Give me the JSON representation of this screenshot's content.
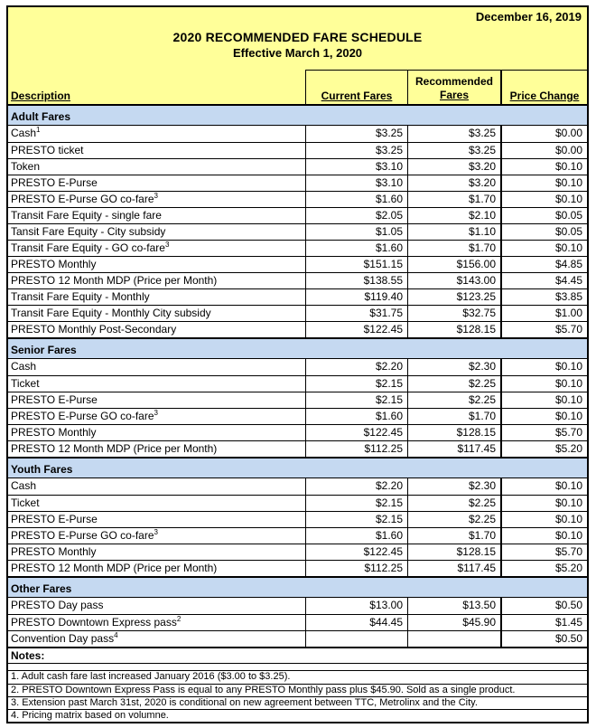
{
  "document": {
    "date": "December 16, 2019",
    "title": "2020 RECOMMENDED FARE SCHEDULE",
    "subtitle": "Effective March 1, 2020"
  },
  "columns": {
    "description": "Description",
    "current": "Current Fares",
    "recommended_line1": "Recommended",
    "recommended_line2": "Fares",
    "price_change": "Price Change"
  },
  "sections": [
    {
      "header": "Adult Fares",
      "rows": [
        {
          "label": "Cash",
          "sup": "1",
          "current": "$3.25",
          "recommended": "$3.25",
          "change": "$0.00"
        },
        {
          "label": "PRESTO ticket",
          "sup": "",
          "current": "$3.25",
          "recommended": "$3.25",
          "change": "$0.00"
        },
        {
          "label": "Token",
          "sup": "",
          "current": "$3.10",
          "recommended": "$3.20",
          "change": "$0.10"
        },
        {
          "label": "PRESTO E-Purse",
          "sup": "",
          "current": "$3.10",
          "recommended": "$3.20",
          "change": "$0.10"
        },
        {
          "label": "PRESTO E-Purse GO co-fare",
          "sup": "3",
          "current": "$1.60",
          "recommended": "$1.70",
          "change": "$0.10"
        },
        {
          "label": "Transit Fare Equity - single fare",
          "sup": "",
          "current": "$2.05",
          "recommended": "$2.10",
          "change": "$0.05"
        },
        {
          "label": "Tansit Fare Equity - City subsidy",
          "sup": "",
          "current": "$1.05",
          "recommended": "$1.10",
          "change": "$0.05"
        },
        {
          "label": "Transit Fare Equity - GO co-fare",
          "sup": "3",
          "current": "$1.60",
          "recommended": "$1.70",
          "change": "$0.10"
        },
        {
          "label": "PRESTO Monthly",
          "sup": "",
          "current": "$151.15",
          "recommended": "$156.00",
          "change": "$4.85"
        },
        {
          "label": "PRESTO 12 Month MDP (Price per Month)",
          "sup": "",
          "current": "$138.55",
          "recommended": "$143.00",
          "change": "$4.45"
        },
        {
          "label": "Transit Fare Equity - Monthly",
          "sup": "",
          "current": "$119.40",
          "recommended": "$123.25",
          "change": "$3.85"
        },
        {
          "label": "Transit Fare Equity - Monthly City subsidy",
          "sup": "",
          "current": "$31.75",
          "recommended": "$32.75",
          "change": "$1.00"
        },
        {
          "label": "PRESTO Monthly Post-Secondary",
          "sup": "",
          "current": "$122.45",
          "recommended": "$128.15",
          "change": "$5.70"
        }
      ]
    },
    {
      "header": "Senior Fares",
      "rows": [
        {
          "label": "Cash",
          "sup": "",
          "current": "$2.20",
          "recommended": "$2.30",
          "change": "$0.10"
        },
        {
          "label": "Ticket",
          "sup": "",
          "current": "$2.15",
          "recommended": "$2.25",
          "change": "$0.10"
        },
        {
          "label": "PRESTO E-Purse",
          "sup": "",
          "current": "$2.15",
          "recommended": "$2.25",
          "change": "$0.10"
        },
        {
          "label": "PRESTO E-Purse GO co-fare",
          "sup": "3",
          "current": "$1.60",
          "recommended": "$1.70",
          "change": "$0.10"
        },
        {
          "label": "PRESTO Monthly",
          "sup": "",
          "current": "$122.45",
          "recommended": "$128.15",
          "change": "$5.70"
        },
        {
          "label": "PRESTO 12 Month MDP (Price per Month)",
          "sup": "",
          "current": "$112.25",
          "recommended": "$117.45",
          "change": "$5.20"
        }
      ]
    },
    {
      "header": "Youth Fares",
      "rows": [
        {
          "label": "Cash",
          "sup": "",
          "current": "$2.20",
          "recommended": "$2.30",
          "change": "$0.10"
        },
        {
          "label": "Ticket",
          "sup": "",
          "current": "$2.15",
          "recommended": "$2.25",
          "change": "$0.10"
        },
        {
          "label": "PRESTO E-Purse",
          "sup": "",
          "current": "$2.15",
          "recommended": "$2.25",
          "change": "$0.10"
        },
        {
          "label": "PRESTO E-Purse GO co-fare",
          "sup": "3",
          "current": "$1.60",
          "recommended": "$1.70",
          "change": "$0.10"
        },
        {
          "label": "PRESTO Monthly",
          "sup": "",
          "current": "$122.45",
          "recommended": "$128.15",
          "change": "$5.70"
        },
        {
          "label": "PRESTO 12 Month MDP (Price per Month)",
          "sup": "",
          "current": "$112.25",
          "recommended": "$117.45",
          "change": "$5.20"
        }
      ]
    },
    {
      "header": "Other Fares",
      "rows": [
        {
          "label": "PRESTO Day pass",
          "sup": "",
          "current": "$13.00",
          "recommended": "$13.50",
          "change": "$0.50"
        },
        {
          "label": "PRESTO Downtown Express pass",
          "sup": "2",
          "current": "$44.45",
          "recommended": "$45.90",
          "change": "$1.45"
        },
        {
          "label": "Convention Day pass",
          "sup": "4",
          "current": "",
          "recommended": "",
          "change": "$0.50"
        }
      ]
    }
  ],
  "notes": {
    "header": "Notes:",
    "items": [
      "1. Adult cash fare last increased January 2016 ($3.00 to $3.25).",
      "2. PRESTO Downtown Express Pass is equal to any PRESTO Monthly pass plus $45.90. Sold as a single product.",
      "3. Extension past March 31st, 2020 is conditional on new agreement between TTC, Metrolinx and the City.",
      "4. Pricing matrix based on volumne."
    ]
  },
  "colors": {
    "header_yellow": "#FFFF99",
    "section_blue": "#C5D9F1",
    "border": "#000000"
  }
}
